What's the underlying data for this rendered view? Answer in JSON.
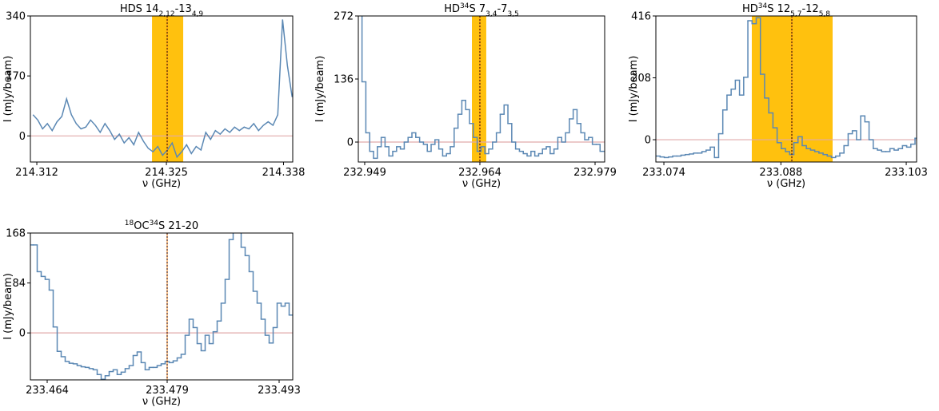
{
  "chart_data": [
    {
      "type": "line",
      "title": [
        {
          "text": "HDS 14"
        },
        {
          "sub": "2,12"
        },
        {
          "text": "-13"
        },
        {
          "sub": "4,9"
        }
      ],
      "xlabel": "ν (GHz)",
      "ylabel": "I (mJy/beam)",
      "color": "#5b88b4",
      "band": [
        214.3239,
        214.32715
      ],
      "band_color": "#ffc10e",
      "marker": 214.32548,
      "hline": 0,
      "hline_color": "#e0aaaa",
      "xlim": [
        214.31123,
        214.33856
      ],
      "ylim": [
        -74,
        340
      ],
      "xticks": [
        {
          "value": 214.3119,
          "label": "214.312"
        },
        {
          "value": 214.3254,
          "label": "214.325"
        },
        {
          "value": 214.3376,
          "label": "214.338"
        }
      ],
      "yticks": [
        0,
        170,
        340
      ],
      "x": [
        214.3115,
        214.312,
        214.3125,
        214.313,
        214.3135,
        214.314,
        214.3145,
        214.315,
        214.3155,
        214.316,
        214.3165,
        214.317,
        214.3175,
        214.318,
        214.3185,
        214.319,
        214.3195,
        214.32,
        214.3205,
        214.321,
        214.3215,
        214.322,
        214.3225,
        214.323,
        214.3235,
        214.324,
        214.3245,
        214.325,
        214.3255,
        214.326,
        214.3265,
        214.327,
        214.3275,
        214.328,
        214.3285,
        214.329,
        214.3295,
        214.33,
        214.3305,
        214.331,
        214.3315,
        214.332,
        214.3325,
        214.333,
        214.3335,
        214.334,
        214.3345,
        214.335,
        214.3355,
        214.336,
        214.3365,
        214.337,
        214.3375,
        214.338,
        214.3385
      ],
      "values": [
        60,
        45,
        20,
        35,
        15,
        40,
        55,
        105,
        60,
        35,
        20,
        25,
        45,
        30,
        10,
        35,
        15,
        -10,
        5,
        -20,
        -5,
        -25,
        10,
        -15,
        -35,
        -45,
        -30,
        -55,
        -40,
        -20,
        -60,
        -45,
        -25,
        -50,
        -30,
        -40,
        10,
        -10,
        15,
        5,
        20,
        10,
        25,
        15,
        25,
        20,
        35,
        15,
        30,
        40,
        30,
        60,
        330,
        200,
        110
      ]
    },
    {
      "type": "step",
      "title": [
        {
          "text": "HD"
        },
        {
          "sup": "34"
        },
        {
          "text": "S 7"
        },
        {
          "sub": "3,4"
        },
        {
          "text": "-7"
        },
        {
          "sub": "3,5"
        }
      ],
      "xlabel": "ν (GHz)",
      "ylabel": "I (mJy/beam)",
      "color": "#5b88b4",
      "band": [
        232.96296,
        232.96483
      ],
      "band_color": "#ffc10e",
      "marker": 232.964,
      "hline": 0,
      "hline_color": "#e0aaaa",
      "xlim": [
        232.94817,
        232.98025
      ],
      "ylim": [
        -43,
        272
      ],
      "xticks": [
        232.949,
        232.964,
        232.979
      ],
      "yticks": [
        0,
        136,
        272
      ],
      "x": [
        232.9484,
        232.9489,
        232.9494,
        232.9499,
        232.9504,
        232.9509,
        232.9514,
        232.9519,
        232.9524,
        232.9529,
        232.9534,
        232.9539,
        232.9544,
        232.9549,
        232.9554,
        232.9559,
        232.9564,
        232.9569,
        232.9574,
        232.9579,
        232.9584,
        232.9589,
        232.9594,
        232.9599,
        232.9604,
        232.9609,
        232.9614,
        232.9619,
        232.9624,
        232.9629,
        232.9634,
        232.9639,
        232.9644,
        232.9649,
        232.9654,
        232.9659,
        232.9664,
        232.9669,
        232.9674,
        232.9679,
        232.9684,
        232.9689,
        232.9694,
        232.9699,
        232.9704,
        232.9709,
        232.9714,
        232.9719,
        232.9724,
        232.9729,
        232.9734,
        232.9739,
        232.9744,
        232.9749,
        232.9754,
        232.9759,
        232.9764,
        232.9769,
        232.9774,
        232.9779,
        232.9784,
        232.9789,
        232.9794,
        232.9799
      ],
      "values": [
        300,
        130,
        20,
        -20,
        -35,
        -10,
        10,
        -10,
        -30,
        -20,
        -10,
        -15,
        0,
        10,
        20,
        10,
        0,
        -5,
        -20,
        -5,
        5,
        -15,
        -30,
        -25,
        -10,
        30,
        60,
        90,
        70,
        40,
        10,
        -20,
        -10,
        -25,
        -15,
        0,
        20,
        60,
        80,
        40,
        0,
        -15,
        -20,
        -25,
        -30,
        -20,
        -30,
        -25,
        -15,
        -10,
        -25,
        -15,
        10,
        0,
        20,
        50,
        70,
        40,
        20,
        5,
        10,
        -5,
        -5,
        -20
      ]
    },
    {
      "type": "step",
      "title": [
        {
          "text": "HD"
        },
        {
          "sup": "34"
        },
        {
          "text": "S 12"
        },
        {
          "sub": "5,7"
        },
        {
          "text": "-12"
        },
        {
          "sub": "5,8"
        }
      ],
      "xlabel": "ν (GHz)",
      "ylabel": "I (mJy/beam)",
      "color": "#5b88b4",
      "band": [
        233.08452,
        233.09419
      ],
      "band_color": "#ffc10e",
      "marker": 233.08931,
      "hline": 0,
      "hline_color": "#e0aaaa",
      "xlim": [
        233.07304,
        233.10424
      ],
      "ylim": [
        -75,
        416
      ],
      "xticks": [
        233.074,
        233.088,
        233.103
      ],
      "yticks": [
        0,
        208,
        416
      ],
      "x": [
        233.0733,
        233.0738,
        233.0743,
        233.0748,
        233.0753,
        233.0758,
        233.0763,
        233.0768,
        233.0773,
        233.0778,
        233.0783,
        233.0788,
        233.0793,
        233.0798,
        233.0803,
        233.0808,
        233.0813,
        233.0818,
        233.0823,
        233.0828,
        233.0833,
        233.0838,
        233.0843,
        233.0848,
        233.0853,
        233.0858,
        233.0863,
        233.0868,
        233.0873,
        233.0878,
        233.0883,
        233.0888,
        233.0893,
        233.0898,
        233.0903,
        233.0908,
        233.0913,
        233.0918,
        233.0923,
        233.0928,
        233.0933,
        233.0938,
        233.0943,
        233.0948,
        233.0953,
        233.0958,
        233.0963,
        233.0968,
        233.0973,
        233.0978,
        233.0983,
        233.0988,
        233.0993,
        233.0998,
        233.1003,
        233.1008,
        233.1013,
        233.1018,
        233.1023,
        233.1028,
        233.1033,
        233.1038,
        233.1043
      ],
      "values": [
        -55,
        -58,
        -60,
        -58,
        -55,
        -55,
        -52,
        -50,
        -48,
        -45,
        -45,
        -40,
        -35,
        -25,
        -60,
        20,
        100,
        150,
        170,
        200,
        150,
        210,
        400,
        390,
        410,
        220,
        140,
        90,
        40,
        -10,
        -30,
        -40,
        -50,
        -10,
        10,
        -20,
        -30,
        -35,
        -40,
        -45,
        -50,
        -55,
        -60,
        -55,
        -45,
        -20,
        20,
        30,
        0,
        80,
        60,
        0,
        -30,
        -35,
        -40,
        -40,
        -30,
        -35,
        -30,
        -20,
        -25,
        -15,
        5
      ]
    },
    {
      "type": "step",
      "title": [
        {
          "sup": "18"
        },
        {
          "text": "OC"
        },
        {
          "sup": "34"
        },
        {
          "text": "S 21-20"
        }
      ],
      "xlabel": "ν (GHz)",
      "ylabel": "I (mJy/beam)",
      "color": "#5b88b4",
      "marker": 233.479,
      "hline": 0,
      "hline_color": "#e0aaaa",
      "xlim": [
        233.4619,
        233.4947
      ],
      "ylim": [
        -79,
        168
      ],
      "xticks": [
        233.464,
        233.479,
        233.493
      ],
      "yticks": [
        0,
        84,
        168
      ],
      "x": [
        233.462,
        233.4625,
        233.463,
        233.4635,
        233.464,
        233.4645,
        233.465,
        233.4655,
        233.466,
        233.4665,
        233.467,
        233.4675,
        233.468,
        233.4685,
        233.469,
        233.4695,
        233.47,
        233.4705,
        233.471,
        233.4715,
        233.472,
        233.4725,
        233.473,
        233.4735,
        233.474,
        233.4745,
        233.475,
        233.4755,
        233.476,
        233.4765,
        233.477,
        233.4775,
        233.478,
        233.4785,
        233.479,
        233.4795,
        233.48,
        233.4805,
        233.481,
        233.4815,
        233.482,
        233.4825,
        233.483,
        233.4835,
        233.484,
        233.4845,
        233.485,
        233.4855,
        233.486,
        233.4865,
        233.487,
        233.4875,
        233.488,
        233.4885,
        233.489,
        233.4895,
        233.49,
        233.4905,
        233.491,
        233.4915,
        233.492,
        233.4925,
        233.493,
        233.4935,
        233.494,
        233.4945
      ],
      "values": [
        148,
        148,
        103,
        95,
        90,
        72,
        10,
        -31,
        -40,
        -48,
        -51,
        -52,
        -55,
        -57,
        -58,
        -60,
        -62,
        -70,
        -78,
        -72,
        -65,
        -62,
        -70,
        -66,
        -60,
        -55,
        -38,
        -32,
        -50,
        -62,
        -58,
        -58,
        -55,
        -52,
        -48,
        -50,
        -47,
        -42,
        -36,
        -4,
        23,
        9,
        -18,
        -30,
        -4,
        -18,
        2,
        20,
        50,
        90,
        157,
        180,
        175,
        144,
        130,
        103,
        70,
        50,
        23,
        -4,
        -17,
        9,
        50,
        45,
        50,
        30
      ]
    }
  ]
}
